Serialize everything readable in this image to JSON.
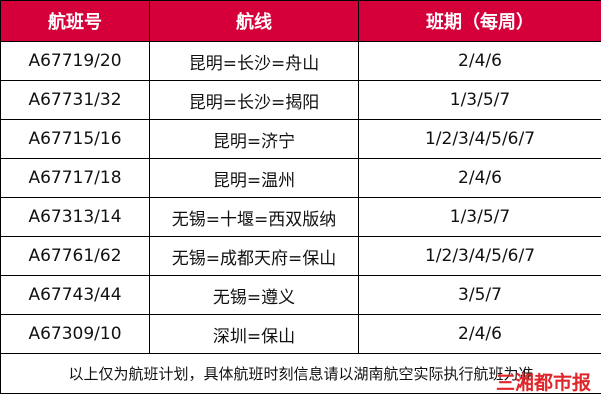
{
  "headers": [
    "航班号",
    "航线",
    "班期（每周）"
  ],
  "rows": [
    {
      "flight": "A67719/20",
      "route": "昆明=长沙=舟山",
      "schedule": "2/4/6"
    },
    {
      "flight": "A67731/32",
      "route": "昆明=长沙=揭阳",
      "schedule": "1/3/5/7"
    },
    {
      "flight": "A67715/16",
      "route": "昆明=济宁",
      "schedule": "1/2/3/4/5/6/7"
    },
    {
      "flight": "A67717/18",
      "route": "昆明=温州",
      "schedule": "2/4/6"
    },
    {
      "flight": "A67313/14",
      "route": "无锡=十堰=西双版纳",
      "schedule": "1/3/5/7"
    },
    {
      "flight": "A67761/62",
      "route": "无锡=成都天府=保山",
      "schedule": "1/2/3/4/5/6/7"
    },
    {
      "flight": "A67743/44",
      "route": "无锡=遵义",
      "schedule": "3/5/7"
    },
    {
      "flight": "A67309/10",
      "route": "深圳=保山",
      "schedule": "2/4/6"
    }
  ],
  "footer": "以上仅为航班计划，具体航班时刻信息请以湖南航空实际执行航班为准",
  "watermark": "三湘都市报",
  "colors": {
    "header_bg": "#d5003a",
    "watermark": "#e0262a"
  }
}
